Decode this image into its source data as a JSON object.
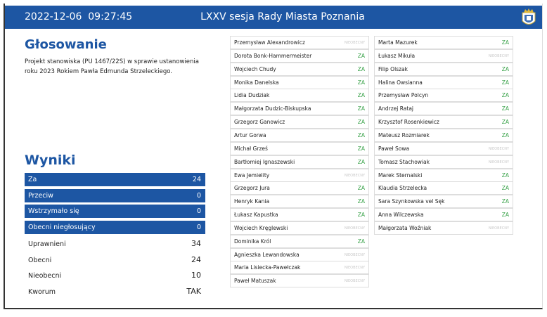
{
  "header": {
    "datetime": "2022-12-06  09:27:45",
    "title": "LXXV sesja Rady Miasta Poznania"
  },
  "voting": {
    "title": "Głosowanie",
    "description": "Projekt stanowiska (PU 1467/22S) w sprawie ustanowienia roku 2023 Rokiem Pawła Edmunda Strzeleckiego."
  },
  "results": {
    "title": "Wyniki",
    "highlighted": [
      {
        "label": "Za",
        "value": 24
      },
      {
        "label": "Przeciw",
        "value": 0
      },
      {
        "label": "Wstrzymało się",
        "value": 0
      },
      {
        "label": "Obecni niegłosujący",
        "value": 0
      }
    ],
    "summary": [
      {
        "label": "Uprawnieni",
        "value": 34
      },
      {
        "label": "Obecni",
        "value": 24
      },
      {
        "label": "Nieobecni",
        "value": 10
      },
      {
        "label": "Kworum",
        "value": "TAK"
      }
    ]
  },
  "members": [
    [
      {
        "name": "Przemysław Alexandrowicz",
        "status": "NIEOBECNY"
      },
      {
        "name": "Dorota Bonk-Hammermeister",
        "status": "ZA"
      },
      {
        "name": "Wojciech Chudy",
        "status": "ZA"
      },
      {
        "name": "Monika Danelska",
        "status": "ZA"
      },
      {
        "name": "Lidia Dudziak",
        "status": "ZA"
      },
      {
        "name": "Małgorzata Dudzic-Biskupska",
        "status": "ZA"
      },
      {
        "name": "Grzegorz Ganowicz",
        "status": "ZA"
      },
      {
        "name": "Artur Gorwa",
        "status": "ZA"
      },
      {
        "name": "Michał Grześ",
        "status": "ZA"
      },
      {
        "name": "Bartłomiej Ignaszewski",
        "status": "ZA"
      },
      {
        "name": "Ewa Jemielity",
        "status": "NIEOBECNY"
      },
      {
        "name": "Grzegorz Jura",
        "status": "ZA"
      },
      {
        "name": "Henryk Kania",
        "status": "ZA"
      },
      {
        "name": "Łukasz Kapustka",
        "status": "ZA"
      },
      {
        "name": "Wojciech Kręglewski",
        "status": "NIEOBECNY"
      },
      {
        "name": "Dominika Król",
        "status": "ZA"
      },
      {
        "name": "Agnieszka Lewandowska",
        "status": "NIEOBECNY"
      },
      {
        "name": "Maria Lisiecka-Pawełczak",
        "status": "NIEOBECNY"
      },
      {
        "name": "Paweł Matuszak",
        "status": "NIEOBECNY"
      }
    ],
    [
      {
        "name": "Marta Mazurek",
        "status": "ZA"
      },
      {
        "name": "Łukasz Mikuła",
        "status": "NIEOBECNY"
      },
      {
        "name": "Filip Olszak",
        "status": "ZA"
      },
      {
        "name": "Halina Owsianna",
        "status": "ZA"
      },
      {
        "name": "Przemysław Polcyn",
        "status": "ZA"
      },
      {
        "name": "Andrzej Rataj",
        "status": "ZA"
      },
      {
        "name": "Krzysztof Rosenkiewicz",
        "status": "ZA"
      },
      {
        "name": "Mateusz Rozmiarek",
        "status": "ZA"
      },
      {
        "name": "Paweł Sowa",
        "status": "NIEOBECNY"
      },
      {
        "name": "Tomasz Stachowiak",
        "status": "NIEOBECNY"
      },
      {
        "name": "Marek Sternalski",
        "status": "ZA"
      },
      {
        "name": "Klaudia Strzelecka",
        "status": "ZA"
      },
      {
        "name": "Sara Szynkowska vel Sęk",
        "status": "ZA"
      },
      {
        "name": "Anna Wilczewska",
        "status": "ZA"
      },
      {
        "name": "Małgorzata Woźniak",
        "status": "NIEOBECNY"
      }
    ]
  ]
}
